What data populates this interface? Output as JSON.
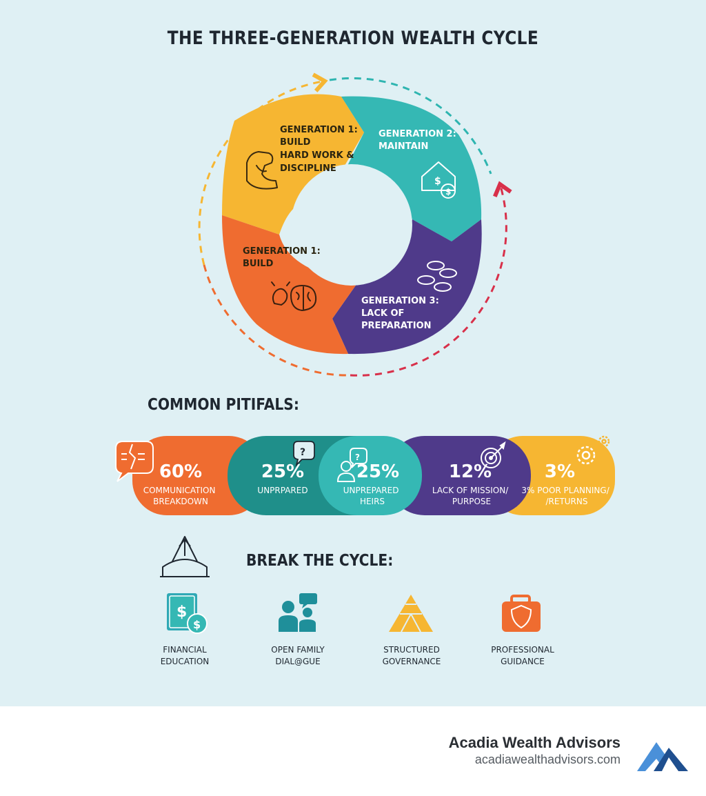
{
  "title": "THE THREE-GENERATION WEALTH CYCLE",
  "cycle": {
    "segments": [
      {
        "lines": [
          "GENERATION 1:",
          "BUILD",
          "HARD WORK &",
          "DISCIPLINE"
        ],
        "color": "#f6b632",
        "icon": "flexed-arm-icon"
      },
      {
        "lines": [
          "GENERATION 2:",
          "MAINTAIN"
        ],
        "color": "#35b8b4",
        "icon": "house-dollar-icon"
      },
      {
        "lines": [
          "GENERATION 3:",
          "LACK OF",
          "PREPARATION"
        ],
        "color": "#4f3a8a",
        "icon": "coins-icon"
      },
      {
        "lines": [
          "GENERATION 1:",
          "BUILD"
        ],
        "color": "#ef6c30",
        "icon": "brain-lightbulb-icon"
      }
    ]
  },
  "pitfalls": {
    "heading": "COMMON PITIFALS:",
    "items": [
      {
        "value": "60%",
        "lines": [
          "COMMUNICATION",
          "BREAKDOWN"
        ],
        "color": "#ef6c30",
        "icon": "broken-speech-bubble-icon"
      },
      {
        "value": "25%",
        "lines": [
          "UNPRPARED"
        ],
        "color": "#1f8f8a",
        "icon": "question-bubble-icon"
      },
      {
        "value": "25%",
        "lines": [
          "UNPREPARED",
          "HEIRS"
        ],
        "color": "#35b8b4",
        "icon": "person-question-icon"
      },
      {
        "value": "12%",
        "lines": [
          "LACK OF MISSION/",
          "PURPOSE"
        ],
        "color": "#4f3a8a",
        "icon": "target-icon"
      },
      {
        "value": "3%",
        "lines": [
          "3% POOR PLANNING/",
          "/RETURNS"
        ],
        "color": "#f6b632",
        "icon": "gears-icon"
      }
    ]
  },
  "break_cycle": {
    "heading": "BREAK THE CYCLE:",
    "icon": "bridge-icon",
    "items": [
      {
        "label": "FINANCIAL\nEDUCATION",
        "icon": "book-dollar-icon"
      },
      {
        "label": "OPEN FAMILY\nDIAL@GUE",
        "icon": "family-chat-icon"
      },
      {
        "label": "STRUCTURED\nGOVERNANCE",
        "icon": "pyramid-icon"
      },
      {
        "label": "PROFESSIONAL\nGUIDANCE",
        "icon": "briefcase-shield-icon"
      }
    ]
  },
  "footer": {
    "brand": "Acadia Wealth Advisors",
    "url": "acadiawealthadvisors.com",
    "logo_colors": [
      "#1f4f8f",
      "#4a90d9"
    ]
  }
}
